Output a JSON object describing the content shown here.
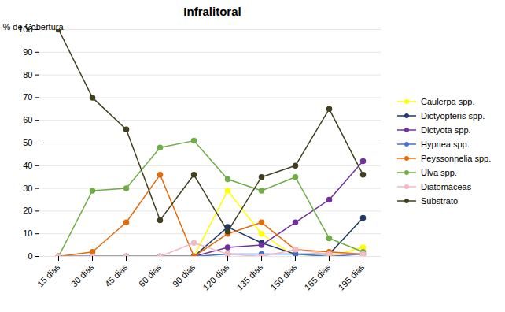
{
  "chart_data": {
    "type": "line",
    "title": "Infralitoral",
    "ylabel": "% de Cobertura",
    "categories": [
      "15 dias",
      "30 dias",
      "45 dias",
      "60 dias",
      "90 dias",
      "120 dias",
      "135 dias",
      "150 dias",
      "165 dias",
      "195 dias"
    ],
    "series": [
      {
        "name": "Caulerpa spp.",
        "color": "#ffff00",
        "values": [
          0,
          0,
          0,
          0,
          0,
          29,
          10,
          0,
          0,
          4
        ]
      },
      {
        "name": "Dictyopteris spp.",
        "color": "#1f3864",
        "values": [
          0,
          0,
          0,
          0,
          0,
          13,
          6,
          1,
          1,
          17
        ]
      },
      {
        "name": "Dictyota spp.",
        "color": "#7030a0",
        "values": [
          0,
          0,
          0,
          0,
          0,
          4,
          5,
          15,
          25,
          42
        ]
      },
      {
        "name": "Hypnea spp.",
        "color": "#4472c4",
        "values": [
          0,
          0,
          0,
          0,
          0,
          1,
          1,
          1,
          0,
          1
        ]
      },
      {
        "name": "Peyssonnelia spp.",
        "color": "#e26b0a",
        "values": [
          0,
          2,
          15,
          36,
          0,
          10,
          15,
          3,
          2,
          1
        ]
      },
      {
        "name": "Ulva spp.",
        "color": "#70ad47",
        "values": [
          0,
          29,
          30,
          48,
          51,
          34,
          29,
          35,
          8,
          2
        ]
      },
      {
        "name": "Diatomáceas",
        "color": "#f4b8c1",
        "values": [
          0,
          0,
          0,
          0,
          6,
          1,
          0,
          3,
          1,
          1
        ]
      },
      {
        "name": "Substrato",
        "color": "#404020",
        "values": [
          100,
          70,
          56,
          16,
          36,
          11,
          35,
          40,
          65,
          36
        ]
      }
    ],
    "marker": "circle",
    "ylim": [
      0,
      100
    ],
    "yticks": [
      0,
      10,
      20,
      30,
      40,
      50,
      60,
      70,
      80,
      90,
      100
    ],
    "grid": "y",
    "legend": "right"
  }
}
